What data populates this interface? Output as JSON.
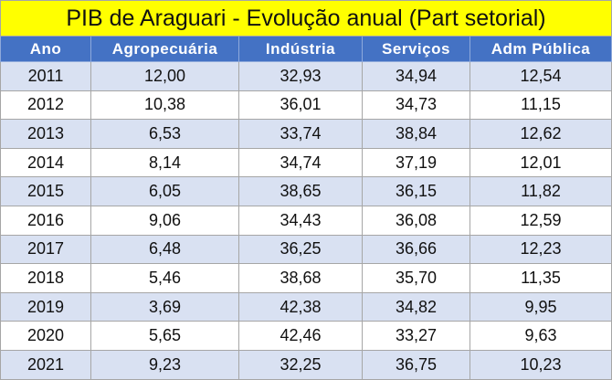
{
  "table": {
    "title": "PIB de Araguari - Evolução anual (Part setorial)",
    "header": [
      "Ano",
      "Agropecuária",
      "Indústria",
      "Serviços",
      "Adm Pública"
    ],
    "rows": [
      [
        "2011",
        "12,00",
        "32,93",
        "34,94",
        "12,54"
      ],
      [
        "2012",
        "10,38",
        "36,01",
        "34,73",
        "11,15"
      ],
      [
        "2013",
        "6,53",
        "33,74",
        "38,84",
        "12,62"
      ],
      [
        "2014",
        "8,14",
        "34,74",
        "37,19",
        "12,01"
      ],
      [
        "2015",
        "6,05",
        "38,65",
        "36,15",
        "11,82"
      ],
      [
        "2016",
        "9,06",
        "34,43",
        "36,08",
        "12,59"
      ],
      [
        "2017",
        "6,48",
        "36,25",
        "36,66",
        "12,23"
      ],
      [
        "2018",
        "5,46",
        "38,68",
        "35,70",
        "11,35"
      ],
      [
        "2019",
        "3,69",
        "42,38",
        "34,82",
        "9,95"
      ],
      [
        "2020",
        "5,65",
        "42,46",
        "33,27",
        "9,63"
      ],
      [
        "2021",
        "9,23",
        "32,25",
        "36,75",
        "10,23"
      ]
    ]
  }
}
